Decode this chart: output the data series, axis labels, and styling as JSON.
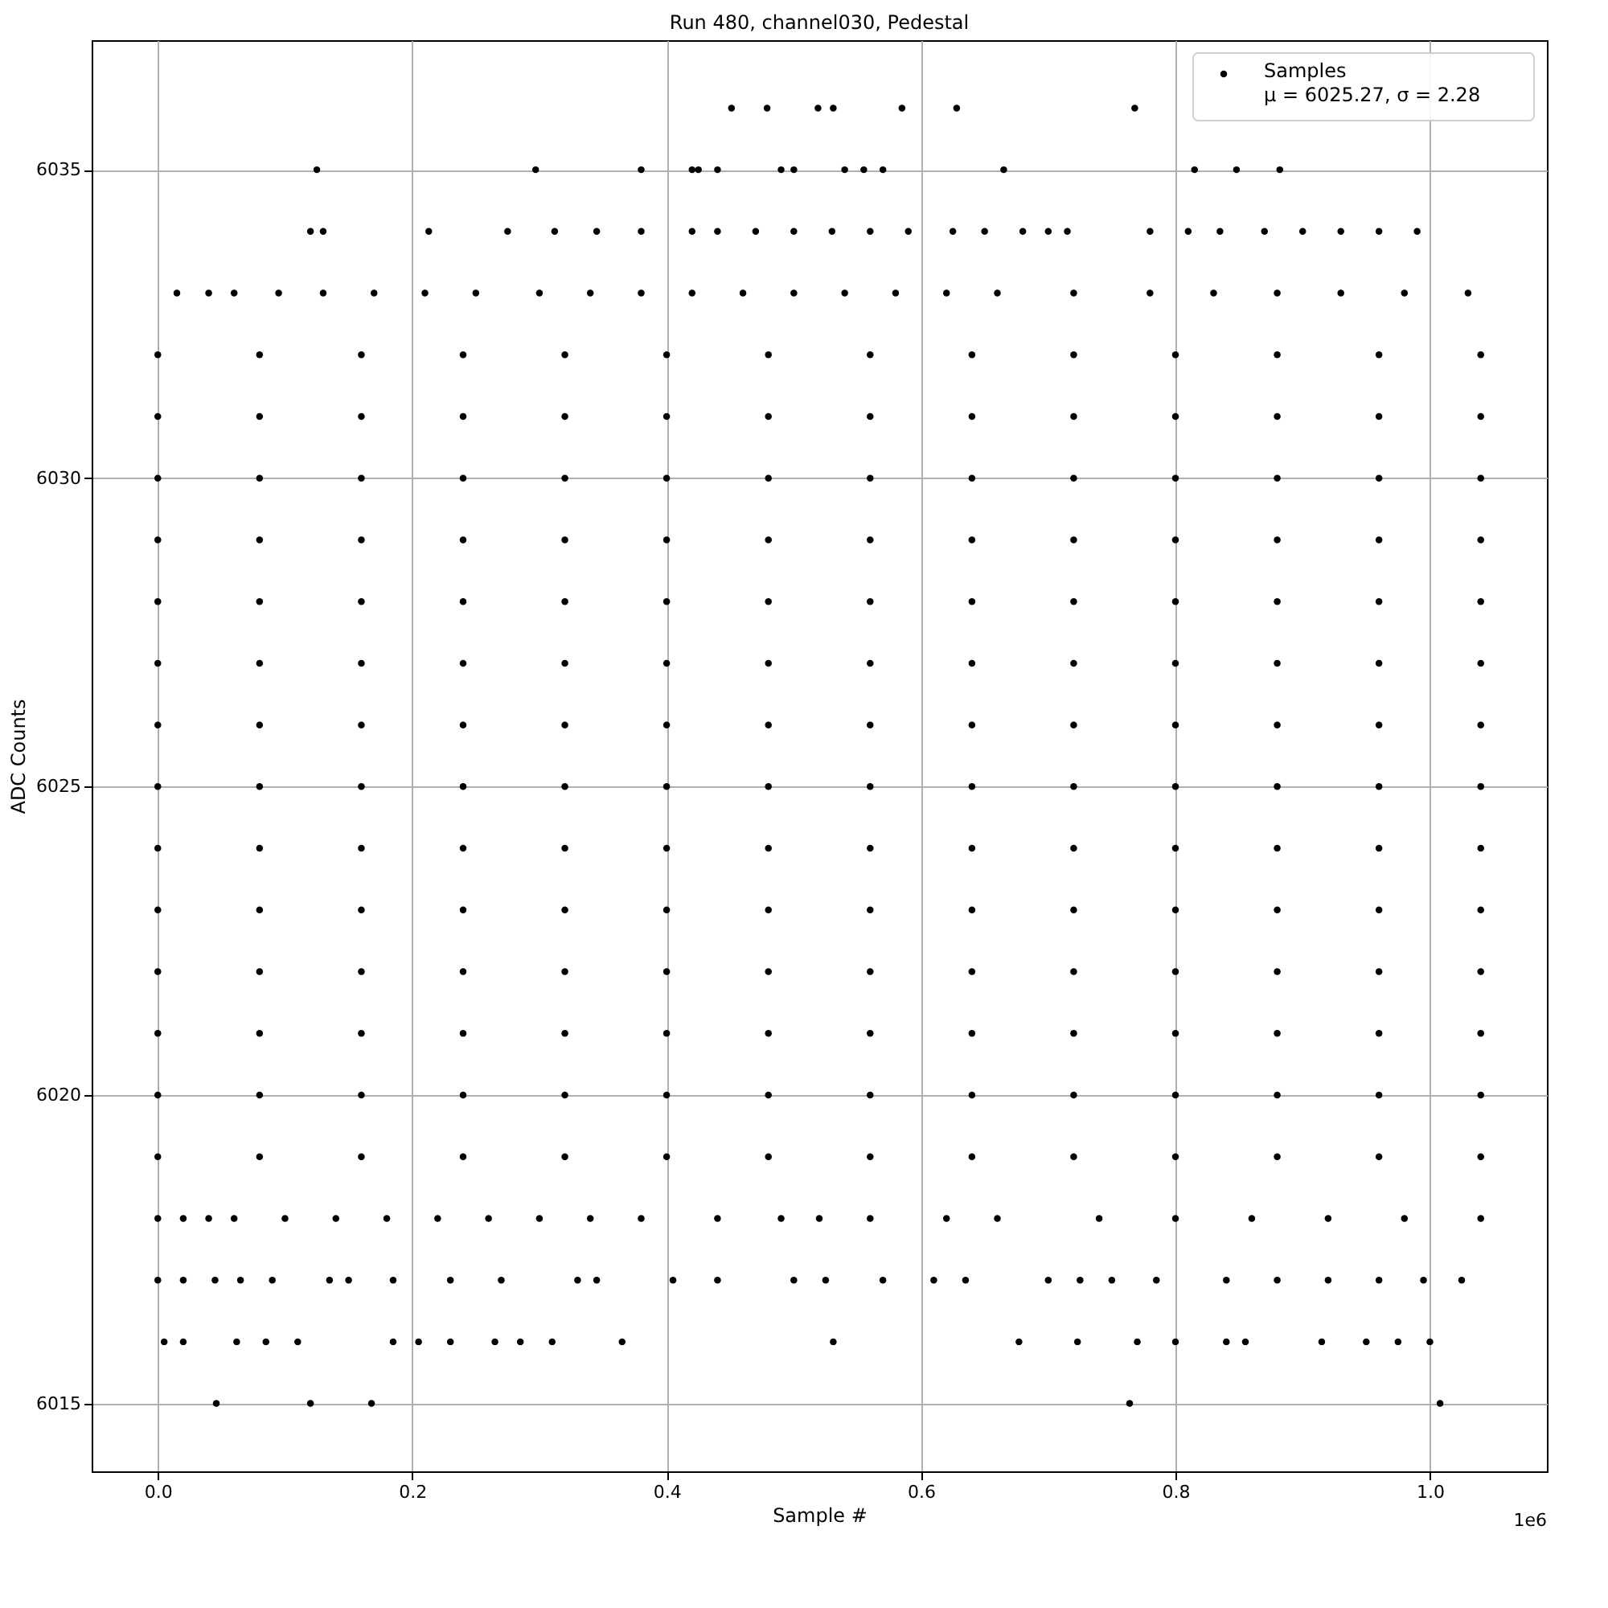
{
  "chart_data": {
    "type": "scatter",
    "title": "Run 480, channel030, Pedestal",
    "xlabel": "Sample #",
    "ylabel": "ADC Counts",
    "xlim": [
      -0.052,
      1.092
    ],
    "ylim": [
      6013.9,
      6037.1
    ],
    "xticks": [
      {
        "value": 0,
        "label": "0.0"
      },
      0.2,
      0.4,
      0.6,
      0.8,
      {
        "value": 1,
        "label": "1.0"
      }
    ],
    "yticks": [
      6015,
      6020,
      6025,
      6030,
      6035
    ],
    "grid": true,
    "legend": "top right",
    "marker": "circle",
    "annotations": [
      "1e6"
    ],
    "series": [
      {
        "name": "Samples\nμ = 6025.27, σ = 2.28",
        "color": "#000000",
        "x": [
          0,
          0.08,
          0.16,
          0.24,
          0.32,
          0.4,
          0.48,
          0.56,
          0.64,
          0.72,
          0.8,
          0.88,
          0.96,
          1.04
        ],
        "values": [
          6020,
          6020,
          6020,
          6020,
          6020,
          6020,
          6020,
          6020,
          6020,
          6020,
          6020,
          6020,
          6020,
          6020
        ]
      },
      {
        "color": "#000000",
        "x": [
          0,
          0.08,
          0.16,
          0.24,
          0.32,
          0.4,
          0.48,
          0.56,
          0.64,
          0.72,
          0.8,
          0.88,
          0.96,
          1.04
        ],
        "values": [
          6021,
          6021,
          6021,
          6021,
          6021,
          6021,
          6021,
          6021,
          6021,
          6021,
          6021,
          6021,
          6021,
          6021
        ]
      },
      {
        "color": "#000000",
        "x": [
          0,
          0.08,
          0.16,
          0.24,
          0.32,
          0.4,
          0.48,
          0.56,
          0.64,
          0.72,
          0.8,
          0.88,
          0.96,
          1.04
        ],
        "values": [
          6022,
          6022,
          6022,
          6022,
          6022,
          6022,
          6022,
          6022,
          6022,
          6022,
          6022,
          6022,
          6022,
          6022
        ]
      },
      {
        "color": "#000000",
        "x": [
          0,
          0.08,
          0.16,
          0.24,
          0.32,
          0.4,
          0.48,
          0.56,
          0.64,
          0.72,
          0.8,
          0.88,
          0.96,
          1.04
        ],
        "values": [
          6023,
          6023,
          6023,
          6023,
          6023,
          6023,
          6023,
          6023,
          6023,
          6023,
          6023,
          6023,
          6023,
          6023
        ]
      },
      {
        "color": "#000000",
        "x": [
          0,
          0.08,
          0.16,
          0.24,
          0.32,
          0.4,
          0.48,
          0.56,
          0.64,
          0.72,
          0.8,
          0.88,
          0.96,
          1.04
        ],
        "values": [
          6024,
          6024,
          6024,
          6024,
          6024,
          6024,
          6024,
          6024,
          6024,
          6024,
          6024,
          6024,
          6024,
          6024
        ]
      },
      {
        "color": "#000000",
        "x": [
          0,
          0.08,
          0.16,
          0.24,
          0.32,
          0.4,
          0.48,
          0.56,
          0.64,
          0.72,
          0.8,
          0.88,
          0.96,
          1.04
        ],
        "values": [
          6025,
          6025,
          6025,
          6025,
          6025,
          6025,
          6025,
          6025,
          6025,
          6025,
          6025,
          6025,
          6025,
          6025
        ]
      },
      {
        "color": "#000000",
        "x": [
          0,
          0.08,
          0.16,
          0.24,
          0.32,
          0.4,
          0.48,
          0.56,
          0.64,
          0.72,
          0.8,
          0.88,
          0.96,
          1.04
        ],
        "values": [
          6026,
          6026,
          6026,
          6026,
          6026,
          6026,
          6026,
          6026,
          6026,
          6026,
          6026,
          6026,
          6026,
          6026
        ]
      },
      {
        "color": "#000000",
        "x": [
          0,
          0.08,
          0.16,
          0.24,
          0.32,
          0.4,
          0.48,
          0.56,
          0.64,
          0.72,
          0.8,
          0.88,
          0.96,
          1.04
        ],
        "values": [
          6027,
          6027,
          6027,
          6027,
          6027,
          6027,
          6027,
          6027,
          6027,
          6027,
          6027,
          6027,
          6027,
          6027
        ]
      },
      {
        "color": "#000000",
        "x": [
          0,
          0.08,
          0.16,
          0.24,
          0.32,
          0.4,
          0.48,
          0.56,
          0.64,
          0.72,
          0.8,
          0.88,
          0.96,
          1.04
        ],
        "values": [
          6028,
          6028,
          6028,
          6028,
          6028,
          6028,
          6028,
          6028,
          6028,
          6028,
          6028,
          6028,
          6028,
          6028
        ]
      },
      {
        "color": "#000000",
        "x": [
          0,
          0.08,
          0.16,
          0.24,
          0.32,
          0.4,
          0.48,
          0.56,
          0.64,
          0.72,
          0.8,
          0.88,
          0.96,
          1.04
        ],
        "values": [
          6029,
          6029,
          6029,
          6029,
          6029,
          6029,
          6029,
          6029,
          6029,
          6029,
          6029,
          6029,
          6029,
          6029
        ]
      },
      {
        "color": "#000000",
        "x": [
          0,
          0.08,
          0.16,
          0.24,
          0.32,
          0.4,
          0.48,
          0.56,
          0.64,
          0.72,
          0.8,
          0.88,
          0.96,
          1.04
        ],
        "values": [
          6030,
          6030,
          6030,
          6030,
          6030,
          6030,
          6030,
          6030,
          6030,
          6030,
          6030,
          6030,
          6030,
          6030
        ]
      },
      {
        "color": "#000000",
        "x": [
          0,
          0.08,
          0.16,
          0.24,
          0.32,
          0.4,
          0.48,
          0.56,
          0.64,
          0.72,
          0.8,
          0.88,
          0.96,
          1.04
        ],
        "values": [
          6031,
          6031,
          6031,
          6031,
          6031,
          6031,
          6031,
          6031,
          6031,
          6031,
          6031,
          6031,
          6031,
          6031
        ]
      },
      {
        "color": "#000000",
        "x": [
          0,
          0.08,
          0.16,
          0.24,
          0.32,
          0.4,
          0.48,
          0.56,
          0.64,
          0.72,
          0.8,
          0.88,
          0.96,
          1.04
        ],
        "values": [
          6019,
          6019,
          6019,
          6019,
          6019,
          6019,
          6019,
          6019,
          6019,
          6019,
          6019,
          6019,
          6019,
          6019
        ]
      },
      {
        "color": "#000000",
        "x": [
          0,
          0.08,
          0.16,
          0.24,
          0.32,
          0.4,
          0.48,
          0.56,
          0.64,
          0.72,
          0.8,
          0.88,
          0.96,
          1.04
        ],
        "values": [
          6032,
          6032,
          6032,
          6032,
          6032,
          6032,
          6032,
          6032,
          6032,
          6032,
          6032,
          6032,
          6032,
          6032
        ]
      },
      {
        "color": "#000000",
        "x": [
          0,
          0.02,
          0.04,
          0.06,
          0.1,
          0.14,
          0.18,
          0.22,
          0.26,
          0.3,
          0.34,
          0.38,
          0.44,
          0.49,
          0.52,
          0.56,
          0.62,
          0.66,
          0.74,
          0.8,
          0.86,
          0.92,
          0.98,
          1.04
        ],
        "values": [
          6018,
          6018,
          6018,
          6018,
          6018,
          6018,
          6018,
          6018,
          6018,
          6018,
          6018,
          6018,
          6018,
          6018,
          6018,
          6018,
          6018,
          6018,
          6018,
          6018,
          6018,
          6018,
          6018,
          6018
        ]
      },
      {
        "color": "#000000",
        "x": [
          0.015,
          0.04,
          0.06,
          0.095,
          0.13,
          0.17,
          0.21,
          0.25,
          0.3,
          0.34,
          0.38,
          0.42,
          0.46,
          0.5,
          0.54,
          0.58,
          0.62,
          0.66,
          0.72,
          0.78,
          0.83,
          0.88,
          0.93,
          0.98,
          1.03
        ],
        "values": [
          6033,
          6033,
          6033,
          6033,
          6033,
          6033,
          6033,
          6033,
          6033,
          6033,
          6033,
          6033,
          6033,
          6033,
          6033,
          6033,
          6033,
          6033,
          6033,
          6033,
          6033,
          6033,
          6033,
          6033,
          6033
        ]
      },
      {
        "color": "#000000",
        "x": [
          0,
          0.02,
          0.045,
          0.065,
          0.09,
          0.135,
          0.15,
          0.185,
          0.23,
          0.27,
          0.33,
          0.345,
          0.405,
          0.44,
          0.5,
          0.525,
          0.57,
          0.61,
          0.635,
          0.7,
          0.725,
          0.75,
          0.785,
          0.84,
          0.88,
          0.92,
          0.96,
          0.995,
          1.025
        ],
        "values": [
          6017,
          6017,
          6017,
          6017,
          6017,
          6017,
          6017,
          6017,
          6017,
          6017,
          6017,
          6017,
          6017,
          6017,
          6017,
          6017,
          6017,
          6017,
          6017,
          6017,
          6017,
          6017,
          6017,
          6017,
          6017,
          6017,
          6017,
          6017,
          6017
        ]
      },
      {
        "color": "#000000",
        "x": [
          0.005,
          0.02,
          0.062,
          0.085,
          0.11,
          0.185,
          0.205,
          0.23,
          0.265,
          0.285,
          0.31,
          0.365,
          0.531,
          0.677,
          0.723,
          0.77,
          0.8,
          0.84,
          0.855,
          0.915,
          0.95,
          0.975,
          1.0
        ],
        "values": [
          6016,
          6016,
          6016,
          6016,
          6016,
          6016,
          6016,
          6016,
          6016,
          6016,
          6016,
          6016,
          6016,
          6016,
          6016,
          6016,
          6016,
          6016,
          6016,
          6016,
          6016,
          6016,
          6016
        ]
      },
      {
        "color": "#000000",
        "x": [
          0.12,
          0.13,
          0.213,
          0.275,
          0.312,
          0.345,
          0.38,
          0.42,
          0.44,
          0.47,
          0.5,
          0.53,
          0.56,
          0.59,
          0.625,
          0.65,
          0.68,
          0.7,
          0.715,
          0.78,
          0.81,
          0.835,
          0.87,
          0.9,
          0.93,
          0.96,
          0.99
        ],
        "values": [
          6034,
          6034,
          6034,
          6034,
          6034,
          6034,
          6034,
          6034,
          6034,
          6034,
          6034,
          6034,
          6034,
          6034,
          6034,
          6034,
          6034,
          6034,
          6034,
          6034,
          6034,
          6034,
          6034,
          6034,
          6034,
          6034,
          6034
        ]
      },
      {
        "color": "#000000",
        "x": [
          0.125,
          0.297,
          0.38,
          0.42,
          0.425,
          0.44,
          0.49,
          0.5,
          0.54,
          0.555,
          0.57,
          0.665,
          0.815,
          0.848,
          0.882
        ],
        "values": [
          6035,
          6035,
          6035,
          6035,
          6035,
          6035,
          6035,
          6035,
          6035,
          6035,
          6035,
          6035,
          6035,
          6035,
          6035
        ]
      },
      {
        "color": "#000000",
        "x": [
          0.451,
          0.479,
          0.519,
          0.531,
          0.585,
          0.628,
          0.768
        ],
        "values": [
          6036,
          6036,
          6036,
          6036,
          6036,
          6036,
          6036
        ]
      },
      {
        "color": "#000000",
        "x": [
          0.046,
          0.12,
          0.168,
          0.764,
          1.008
        ],
        "values": [
          6015,
          6015,
          6015,
          6015,
          6015
        ]
      }
    ]
  }
}
